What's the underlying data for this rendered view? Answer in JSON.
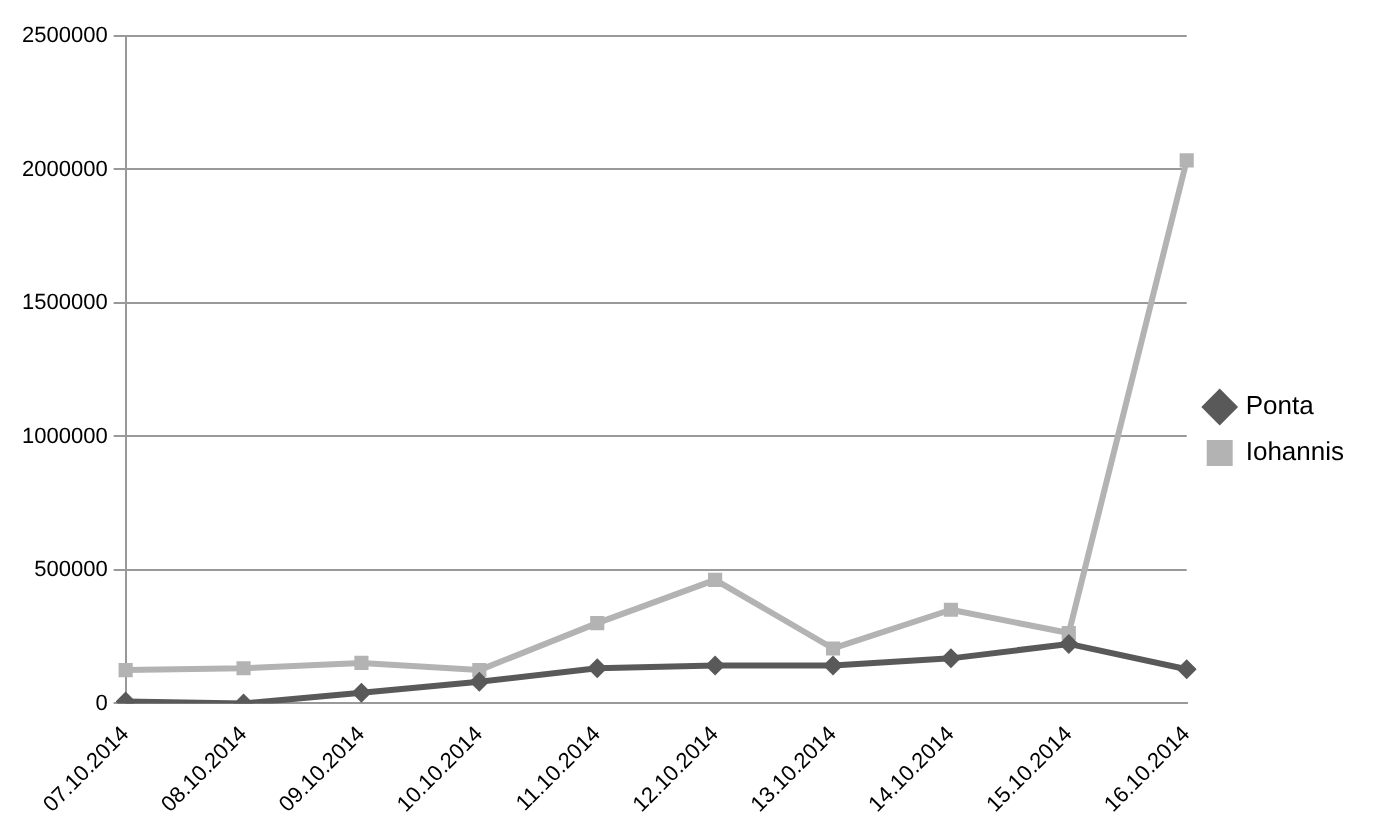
{
  "chart_data": {
    "type": "line",
    "categories": [
      "07.10.2014",
      "08.10.2014",
      "09.10.2014",
      "10.10.2014",
      "11.10.2014",
      "12.10.2014",
      "13.10.2014",
      "14.10.2014",
      "15.10.2014",
      "16.10.2014"
    ],
    "series": [
      {
        "name": "Ponta",
        "color": "#595959",
        "marker": "diamond",
        "values": [
          7000,
          0,
          40000,
          81000,
          132000,
          142000,
          142000,
          169000,
          223000,
          128000
        ]
      },
      {
        "name": "Iohannis",
        "color": "#b3b3b3",
        "marker": "square",
        "values": [
          125000,
          132000,
          152000,
          125000,
          301000,
          463000,
          206000,
          351000,
          264000,
          2034000
        ]
      }
    ],
    "ylim": [
      0,
      2500000
    ],
    "yticks": [
      0,
      500000,
      1000000,
      1500000,
      2000000,
      2500000
    ],
    "grid": "y",
    "legend": "right"
  }
}
